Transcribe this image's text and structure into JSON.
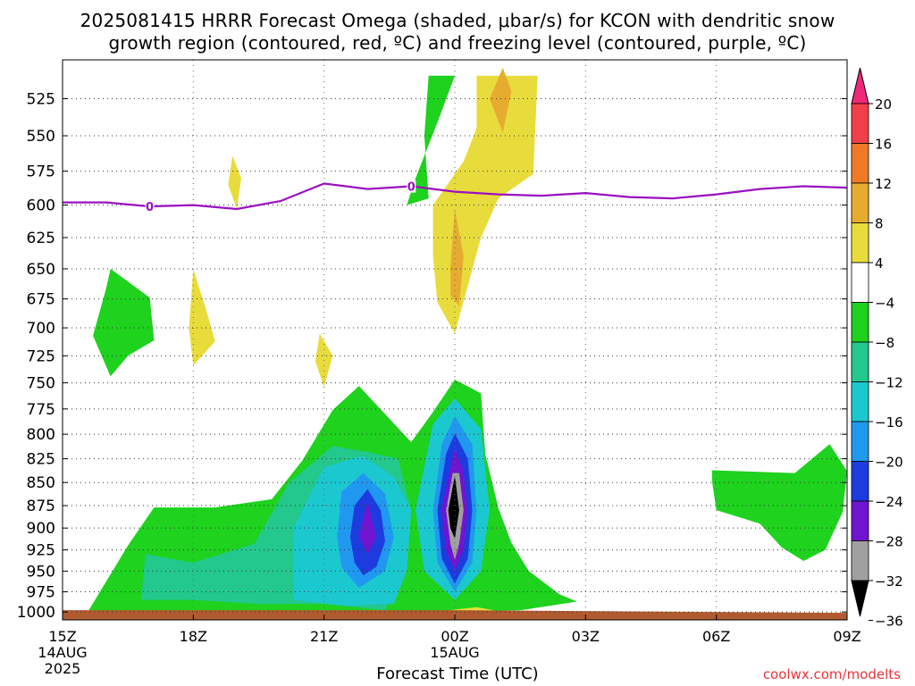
{
  "title_line1": "2025081415 HRRR Forecast Omega (shaded, μbar/s) for KCON with dendritic snow",
  "title_line2": "growth region (contoured, red, ºC) and freezing level (contoured, purple, ºC)",
  "credit": "coolwx.com/modelts",
  "chart_data": {
    "type": "heatmap",
    "title": "2025081415 HRRR Forecast Omega (shaded, μbar/s) for KCON with dendritic snow growth region (contoured, red, ºC) and freezing level (contoured, purple, ºC)",
    "xlabel": "Forecast Time (UTC)",
    "ylabel": "",
    "x_ticks": [
      "15Z",
      "18Z",
      "21Z",
      "00Z",
      "03Z",
      "06Z",
      "09Z"
    ],
    "x_date_labels": [
      {
        "tick": "15Z",
        "lines": [
          "14AUG",
          "2025"
        ]
      },
      {
        "tick": "00Z",
        "lines": [
          "15AUG"
        ]
      }
    ],
    "x_hours": [
      15,
      18,
      21,
      24,
      27,
      30,
      33
    ],
    "xlim_hours": [
      15,
      33
    ],
    "y_ticks": [
      525,
      550,
      575,
      600,
      625,
      650,
      675,
      700,
      725,
      750,
      775,
      800,
      825,
      850,
      875,
      900,
      925,
      950,
      975,
      1000
    ],
    "ylim_mb": [
      500,
      1010
    ],
    "grid": true,
    "colorbar": {
      "labels": [
        "20",
        "16",
        "12",
        "8",
        "4",
        "−4",
        "−8",
        "−12",
        "−16",
        "−20",
        "−24",
        "−28",
        "−32",
        "−36"
      ],
      "colors": [
        "#f0287a",
        "#f2404a",
        "#ee7a28",
        "#e6ac30",
        "#e8dc3c",
        "#ffffff",
        "#1ed21e",
        "#22c88c",
        "#1cc8d0",
        "#2098f0",
        "#1c3ce0",
        "#7014d0",
        "#a0a0a0",
        "#000000"
      ]
    },
    "freezing_level": {
      "label": "0",
      "color": "#9a10c0",
      "points": [
        {
          "hour": 15.0,
          "mb": 598
        },
        {
          "hour": 16.0,
          "mb": 598
        },
        {
          "hour": 17.0,
          "mb": 601
        },
        {
          "hour": 18.0,
          "mb": 600
        },
        {
          "hour": 19.0,
          "mb": 603
        },
        {
          "hour": 20.0,
          "mb": 597
        },
        {
          "hour": 21.0,
          "mb": 584
        },
        {
          "hour": 22.0,
          "mb": 588
        },
        {
          "hour": 23.0,
          "mb": 586
        },
        {
          "hour": 24.0,
          "mb": 590
        },
        {
          "hour": 25.0,
          "mb": 592
        },
        {
          "hour": 26.0,
          "mb": 593
        },
        {
          "hour": 27.0,
          "mb": 591
        },
        {
          "hour": 28.0,
          "mb": 594
        },
        {
          "hour": 29.0,
          "mb": 595
        },
        {
          "hour": 30.0,
          "mb": 592
        },
        {
          "hour": 31.0,
          "mb": 588
        },
        {
          "hour": 32.0,
          "mb": 586
        },
        {
          "hour": 33.0,
          "mb": 587
        }
      ],
      "label_positions": [
        {
          "hour": 17.0,
          "mb": 601
        },
        {
          "hour": 23.0,
          "mb": 586
        }
      ]
    },
    "omega_regions": [
      {
        "level": "-4 to -8",
        "color": "#1ed21e",
        "points": [
          [
            16.1,
            650
          ],
          [
            17.0,
            674
          ],
          [
            17.1,
            711
          ],
          [
            16.5,
            725
          ],
          [
            16.1,
            744
          ],
          [
            15.7,
            707
          ],
          [
            16.0,
            666
          ]
        ]
      },
      {
        "level": "4 to 8",
        "color": "#e8dc3c",
        "points": [
          [
            18.0,
            650
          ],
          [
            18.3,
            685
          ],
          [
            18.5,
            712
          ],
          [
            18.0,
            734
          ],
          [
            17.9,
            700
          ]
        ]
      },
      {
        "level": "4 to 8",
        "color": "#e8dc3c",
        "points": [
          [
            18.9,
            564
          ],
          [
            19.1,
            580
          ],
          [
            19.0,
            603
          ],
          [
            18.8,
            585
          ]
        ]
      },
      {
        "level": "4 to 8",
        "color": "#e8dc3c",
        "points": [
          [
            20.9,
            705
          ],
          [
            21.2,
            725
          ],
          [
            21.0,
            754
          ],
          [
            20.8,
            730
          ]
        ]
      },
      {
        "level": "-4 to -8",
        "color": "#1ed21e",
        "points": [
          [
            23.4,
            510
          ],
          [
            24.0,
            510
          ],
          [
            23.6,
            541
          ],
          [
            23.1,
            580
          ],
          [
            22.9,
            600
          ],
          [
            23.4,
            595
          ],
          [
            23.3,
            550
          ]
        ]
      },
      {
        "level": "4 to 8",
        "color": "#e8dc3c",
        "points": [
          [
            23.5,
            600
          ],
          [
            24.2,
            568
          ],
          [
            24.5,
            545
          ],
          [
            24.5,
            510
          ],
          [
            25.9,
            510
          ],
          [
            25.8,
            577
          ],
          [
            25.0,
            595
          ],
          [
            24.6,
            625
          ],
          [
            24.3,
            664
          ],
          [
            24.0,
            705
          ],
          [
            23.6,
            678
          ],
          [
            23.5,
            640
          ]
        ]
      },
      {
        "level": "8 to 12",
        "color": "#e6ac30",
        "points": [
          [
            23.9,
            648
          ],
          [
            24.0,
            603
          ],
          [
            24.2,
            640
          ],
          [
            24.1,
            681
          ],
          [
            23.9,
            672
          ]
        ]
      },
      {
        "level": "8 to 12",
        "color": "#e6ac30",
        "points": [
          [
            24.8,
            525
          ],
          [
            25.1,
            505
          ],
          [
            25.3,
            520
          ],
          [
            25.1,
            548
          ]
        ]
      },
      {
        "level": "-4 to -8",
        "color": "#1ed21e",
        "points": [
          [
            15.6,
            998
          ],
          [
            16.5,
            920
          ],
          [
            17.1,
            877
          ],
          [
            18.5,
            877
          ],
          [
            19.8,
            868
          ],
          [
            20.5,
            827
          ],
          [
            21.2,
            776
          ],
          [
            21.8,
            753
          ],
          [
            23.0,
            808
          ],
          [
            23.5,
            778
          ],
          [
            24.0,
            747
          ],
          [
            24.6,
            760
          ],
          [
            24.7,
            820
          ],
          [
            25.0,
            878
          ],
          [
            25.3,
            917
          ],
          [
            25.7,
            950
          ],
          [
            26.4,
            978
          ],
          [
            26.8,
            987
          ],
          [
            25.5,
            998
          ],
          [
            24.0,
            999
          ],
          [
            22.0,
            1001
          ],
          [
            19.0,
            1001
          ],
          [
            16.5,
            1000
          ]
        ]
      },
      {
        "level": "-8 to -12",
        "color": "#22c88c",
        "points": [
          [
            16.8,
            985
          ],
          [
            16.9,
            930
          ],
          [
            18.0,
            940
          ],
          [
            19.4,
            918
          ],
          [
            20.2,
            850
          ],
          [
            21.2,
            812
          ],
          [
            22.0,
            818
          ],
          [
            22.7,
            825
          ],
          [
            23.0,
            880
          ],
          [
            22.7,
            960
          ],
          [
            22.4,
            998
          ],
          [
            21.0,
            990
          ],
          [
            19.5,
            990
          ],
          [
            18.0,
            985
          ]
        ]
      },
      {
        "level": "-12 to -16",
        "color": "#1cc8d0",
        "points": [
          [
            20.3,
            985
          ],
          [
            20.3,
            900
          ],
          [
            21.0,
            834
          ],
          [
            21.9,
            822
          ],
          [
            22.6,
            844
          ],
          [
            23.0,
            880
          ],
          [
            22.9,
            950
          ],
          [
            22.6,
            990
          ],
          [
            21.5,
            992
          ]
        ]
      },
      {
        "level": "-8 to -16",
        "color": "#1cc8d0",
        "points": [
          [
            23.1,
            880
          ],
          [
            23.5,
            790
          ],
          [
            24.0,
            765
          ],
          [
            24.6,
            795
          ],
          [
            24.8,
            880
          ],
          [
            24.6,
            950
          ],
          [
            24.0,
            985
          ],
          [
            23.3,
            950
          ]
        ]
      },
      {
        "level": "-16 to -20",
        "color": "#2098f0",
        "points": [
          [
            21.3,
            910
          ],
          [
            21.4,
            860
          ],
          [
            21.9,
            840
          ],
          [
            22.4,
            862
          ],
          [
            22.6,
            910
          ],
          [
            22.4,
            950
          ],
          [
            21.8,
            970
          ],
          [
            21.4,
            945
          ]
        ]
      },
      {
        "level": "-16 to -20",
        "color": "#2098f0",
        "points": [
          [
            23.5,
            880
          ],
          [
            23.7,
            810
          ],
          [
            24.0,
            782
          ],
          [
            24.4,
            810
          ],
          [
            24.5,
            880
          ],
          [
            24.4,
            940
          ],
          [
            24.0,
            975
          ],
          [
            23.6,
            940
          ]
        ]
      },
      {
        "level": "-20 to -24",
        "color": "#1c3ce0",
        "points": [
          [
            21.6,
            910
          ],
          [
            21.7,
            875
          ],
          [
            22.0,
            857
          ],
          [
            22.3,
            880
          ],
          [
            22.4,
            915
          ],
          [
            22.2,
            945
          ],
          [
            21.9,
            955
          ],
          [
            21.7,
            940
          ]
        ]
      },
      {
        "level": "-20 to -24",
        "color": "#1c3ce0",
        "points": [
          [
            23.6,
            880
          ],
          [
            23.8,
            820
          ],
          [
            24.0,
            799
          ],
          [
            24.3,
            825
          ],
          [
            24.4,
            880
          ],
          [
            24.3,
            935
          ],
          [
            24.0,
            965
          ],
          [
            23.7,
            935
          ]
        ]
      },
      {
        "level": "-24 to -28",
        "color": "#7014d0",
        "points": [
          [
            21.8,
            910
          ],
          [
            22.0,
            870
          ],
          [
            22.2,
            910
          ],
          [
            22.0,
            930
          ]
        ]
      },
      {
        "level": "-24 to -28",
        "color": "#7014d0",
        "points": [
          [
            23.7,
            880
          ],
          [
            23.9,
            835
          ],
          [
            24.0,
            815
          ],
          [
            24.2,
            838
          ],
          [
            24.3,
            880
          ],
          [
            24.2,
            925
          ],
          [
            24.0,
            950
          ],
          [
            23.8,
            925
          ]
        ]
      },
      {
        "level": "-28 to -32",
        "color": "#a0a0a0",
        "points": [
          [
            23.8,
            880
          ],
          [
            23.95,
            840
          ],
          [
            24.1,
            840
          ],
          [
            24.2,
            880
          ],
          [
            24.1,
            918
          ],
          [
            24.0,
            937
          ],
          [
            23.9,
            918
          ]
        ]
      },
      {
        "level": "< -36",
        "color": "#000000",
        "points": [
          [
            23.85,
            880
          ],
          [
            24.0,
            843
          ],
          [
            24.1,
            880
          ],
          [
            24.0,
            912
          ],
          [
            23.9,
            900
          ]
        ]
      },
      {
        "level": "-4 to -8",
        "color": "#1ed21e",
        "points": [
          [
            29.9,
            837
          ],
          [
            31.8,
            840
          ],
          [
            32.6,
            810
          ],
          [
            33.0,
            838
          ],
          [
            32.9,
            882
          ],
          [
            32.5,
            925
          ],
          [
            32.0,
            938
          ],
          [
            31.5,
            922
          ],
          [
            31.0,
            895
          ],
          [
            30.0,
            880
          ],
          [
            29.9,
            848
          ]
        ]
      },
      {
        "level": "4 to 8",
        "color": "#e8dc3c",
        "points": [
          [
            23.5,
            1000
          ],
          [
            24.5,
            994
          ],
          [
            24.9,
            998
          ],
          [
            24.5,
            1004
          ],
          [
            23.5,
            1004
          ]
        ]
      }
    ],
    "terrain": {
      "color": "#b05a30",
      "surface_mb": 1000
    }
  }
}
